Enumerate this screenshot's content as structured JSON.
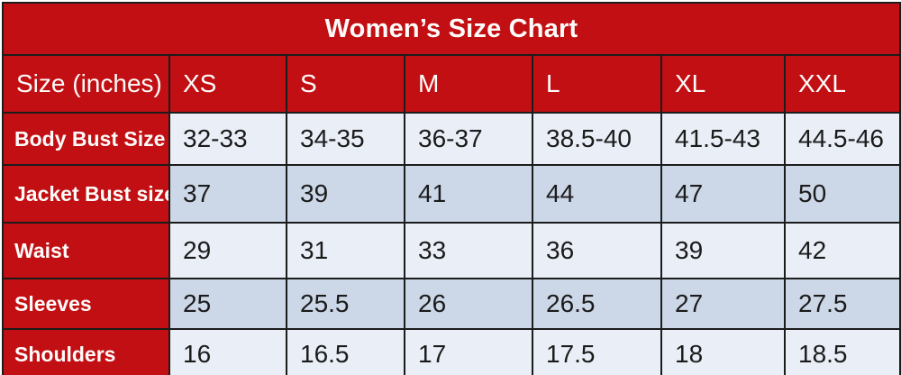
{
  "title": "Women’s Size Chart",
  "colors": {
    "header_red": "#c20f13",
    "row_light": "#e9eef7",
    "row_dark": "#ccd7e7",
    "border": "#1c1c1c",
    "header_text": "#fdfcfa",
    "data_text": "#1b1b1b"
  },
  "table": {
    "header": [
      "Size (inches)",
      "XS",
      "S",
      "M",
      "L",
      "XL",
      "XXL"
    ],
    "rows": [
      {
        "label": "Body Bust Size",
        "values": [
          "32-33",
          "34-35",
          "36-37",
          "38.5-40",
          "41.5-43",
          "44.5-46"
        ]
      },
      {
        "label": "Jacket Bust size",
        "values": [
          "37",
          "39",
          "41",
          "44",
          "47",
          "50"
        ]
      },
      {
        "label": "Waist",
        "values": [
          "29",
          "31",
          "33",
          "36",
          "39",
          "42"
        ]
      },
      {
        "label": "Sleeves",
        "values": [
          "25",
          "25.5",
          "26",
          "26.5",
          "27",
          "27.5"
        ]
      },
      {
        "label": "Shoulders",
        "values": [
          "16",
          "16.5",
          "17",
          "17.5",
          "18",
          "18.5"
        ]
      }
    ]
  },
  "chart_data": {
    "type": "table",
    "title": "Women’s Size Chart",
    "columns": [
      "Size (inches)",
      "XS",
      "S",
      "M",
      "L",
      "XL",
      "XXL"
    ],
    "rows": [
      [
        "Body Bust Size",
        "32-33",
        "34-35",
        "36-37",
        "38.5-40",
        "41.5-43",
        "44.5-46"
      ],
      [
        "Jacket Bust size",
        "37",
        "39",
        "41",
        "44",
        "47",
        "50"
      ],
      [
        "Waist",
        "29",
        "31",
        "33",
        "36",
        "39",
        "42"
      ],
      [
        "Sleeves",
        "25",
        "25.5",
        "26",
        "26.5",
        "27",
        "27.5"
      ],
      [
        "Shoulders",
        "16",
        "16.5",
        "17",
        "17.5",
        "18",
        "18.5"
      ]
    ],
    "layout": {
      "header_fill": "red",
      "alternating_rows": true,
      "grid": true
    }
  }
}
